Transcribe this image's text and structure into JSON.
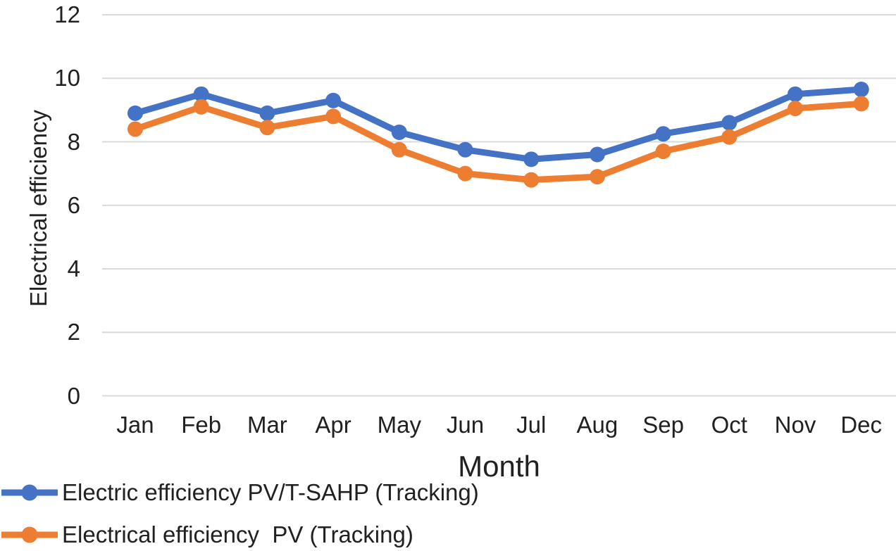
{
  "chart_data": {
    "type": "line",
    "title": "",
    "xlabel": "Month",
    "ylabel": "Electrical efficiency",
    "categories": [
      "Jan",
      "Feb",
      "Mar",
      "Apr",
      "May",
      "Jun",
      "Jul",
      "Aug",
      "Sep",
      "Oct",
      "Nov",
      "Dec"
    ],
    "y_ticks": [
      0,
      2,
      4,
      6,
      8,
      10,
      12
    ],
    "ylim": [
      0,
      12
    ],
    "grid": "horizontal-only",
    "legend_position": "bottom-left",
    "colors": {
      "gridline": "#d9d9d9",
      "text": "#212121",
      "background": "#ffffff"
    },
    "series": [
      {
        "name": "Electric efficiency PV/T-SAHP (Tracking)",
        "color": "#4472C4",
        "marker": "circle",
        "values": [
          8.9,
          9.5,
          8.9,
          9.3,
          8.3,
          7.75,
          7.45,
          7.6,
          8.25,
          8.6,
          9.5,
          9.65
        ]
      },
      {
        "name": "Electrical efficiency  PV (Tracking)",
        "color": "#ED7D31",
        "marker": "circle",
        "values": [
          8.4,
          9.1,
          8.45,
          8.8,
          7.75,
          7.0,
          6.8,
          6.9,
          7.7,
          8.15,
          9.05,
          9.2
        ]
      }
    ]
  }
}
